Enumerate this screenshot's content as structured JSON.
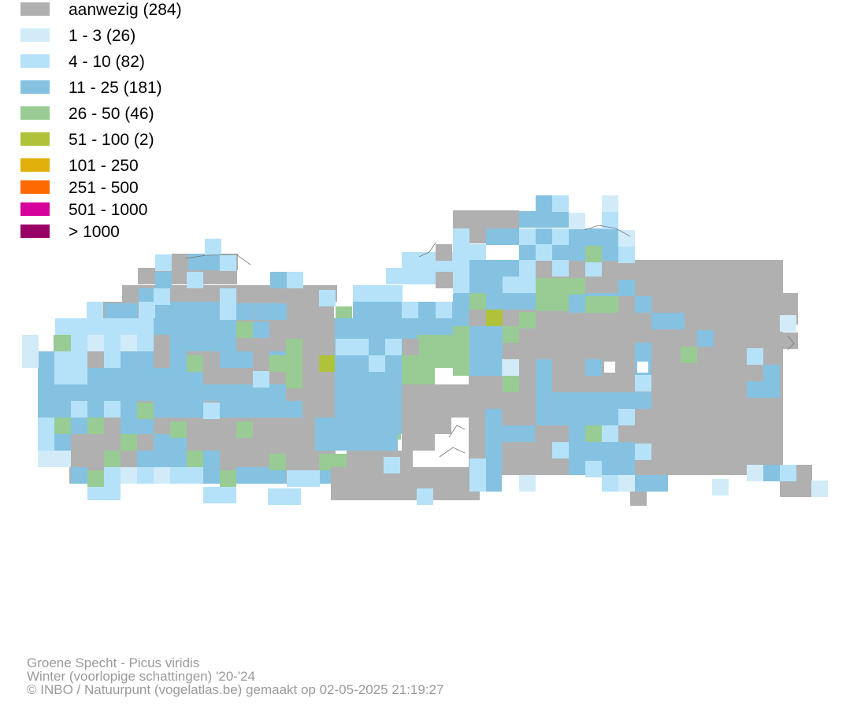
{
  "legend": {
    "items": [
      {
        "label": "aanwezig (284)",
        "color": "#b0b0b0"
      },
      {
        "label": "1 - 3 (26)",
        "color": "#d2ebf8"
      },
      {
        "label": "4 - 10 (82)",
        "color": "#b5e2f9"
      },
      {
        "label": "11 - 25 (181)",
        "color": "#85c2e1"
      },
      {
        "label": "26 - 50 (46)",
        "color": "#98cc94"
      },
      {
        "label": "51 - 100 (2)",
        "color": "#b0c13a"
      },
      {
        "label": "101 - 250",
        "color": "#e1b00a"
      },
      {
        "label": "251 - 500",
        "color": "#ff6a00"
      },
      {
        "label": "501 - 1000",
        "color": "#d6009b"
      },
      {
        "label": "> 1000",
        "color": "#990066"
      }
    ]
  },
  "credits": {
    "species": "Groene Specht - Picus viridis",
    "season": "Winter (voorlopige schattingen) '20-'24",
    "source": "© INBO / Natuurpunt (vogelatlas.be) gemaakt op 02-05-2025 21:19:27"
  }
}
